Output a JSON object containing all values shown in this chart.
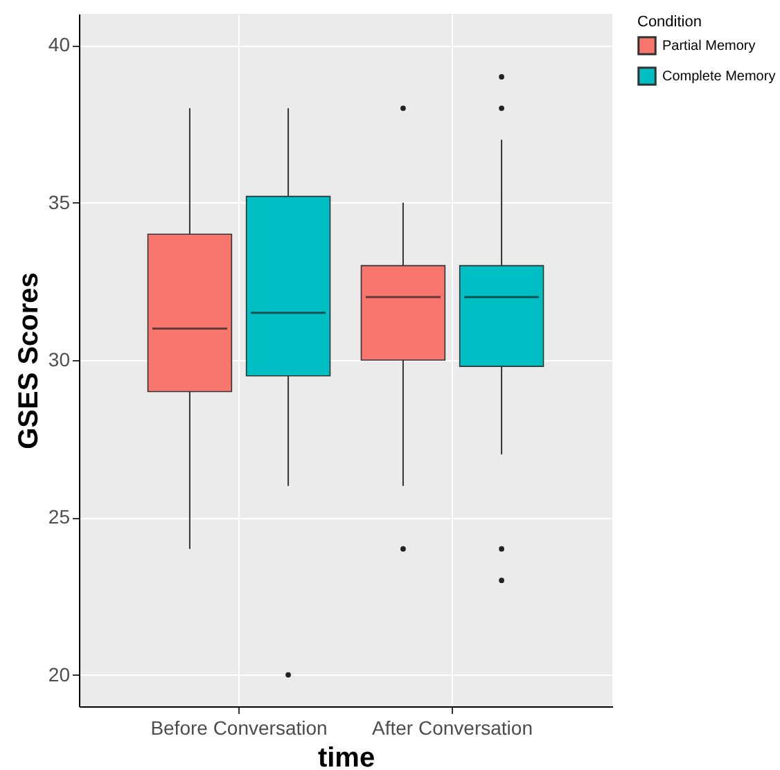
{
  "chart_data": {
    "type": "box",
    "xlabel": "time",
    "ylabel": "GSES Scores",
    "legend_title": "Condition",
    "categories": [
      "Before Conversation",
      "After Conversation"
    ],
    "series": [
      {
        "name": "Partial Memory",
        "color": "#f8766d",
        "boxes": [
          {
            "low": 24,
            "q1": 29,
            "median": 31,
            "q3": 34,
            "high": 38
          },
          {
            "low": 26,
            "q1": 30,
            "median": 32,
            "q3": 33,
            "high": 35,
            "outliers": [
              38,
              24
            ]
          }
        ]
      },
      {
        "name": "Complete Memory",
        "color": "#00bfc4",
        "boxes": [
          {
            "low": 26,
            "q1": 29.5,
            "median": 31.5,
            "q3": 35.2,
            "high": 38,
            "outliers": [
              20
            ]
          },
          {
            "low": 27,
            "q1": 29.8,
            "median": 32,
            "q3": 33,
            "high": 37,
            "outliers": [
              39,
              38,
              24,
              23
            ]
          }
        ]
      }
    ],
    "ylim": [
      19,
      41
    ],
    "yticks": [
      20,
      25,
      30,
      35,
      40
    ],
    "grid": true,
    "legend": "right"
  }
}
